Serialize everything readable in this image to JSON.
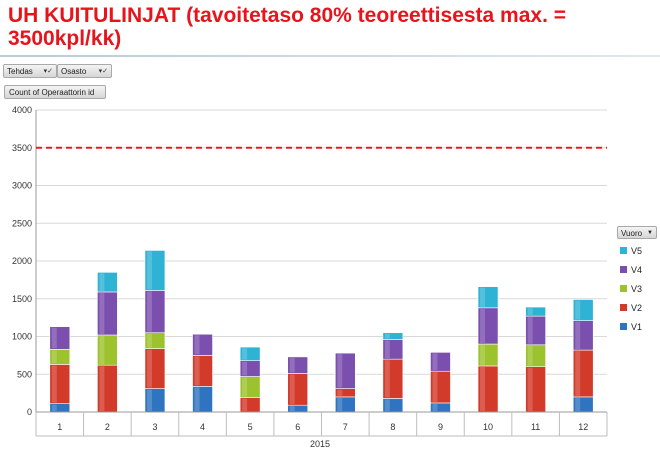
{
  "title": "UH KUITULINJAT (tavoitetaso 80% teoreettisesta max. = 3500kpl/kk)",
  "filters": {
    "tehdas_label": "Tehdas",
    "osasto_label": "Osasto",
    "value_field_label": "Count of Operaattorin id",
    "legend_field_label": "Vuoro"
  },
  "colors": {
    "V1": "#2e74c0",
    "V2": "#d23a2a",
    "V3": "#9cc22e",
    "V4": "#7a4fae",
    "V5": "#2fb3d4",
    "target_line": "#e02020"
  },
  "chart_data": {
    "type": "bar",
    "stacked": true,
    "categories": [
      "1",
      "2",
      "3",
      "4",
      "5",
      "6",
      "7",
      "8",
      "9",
      "10",
      "11",
      "12"
    ],
    "xlabel": "2015",
    "ylabel": "",
    "ylim": [
      0,
      4000
    ],
    "yticks": [
      0,
      500,
      1000,
      1500,
      2000,
      2500,
      3000,
      3500,
      4000
    ],
    "grid": true,
    "legend_position": "right",
    "target": {
      "value": 3500,
      "style": "dashed"
    },
    "series": [
      {
        "name": "V1",
        "values": [
          110,
          0,
          310,
          340,
          0,
          90,
          200,
          180,
          120,
          0,
          0,
          200
        ]
      },
      {
        "name": "V2",
        "values": [
          520,
          620,
          530,
          410,
          190,
          420,
          110,
          520,
          420,
          610,
          600,
          620
        ]
      },
      {
        "name": "V3",
        "values": [
          200,
          400,
          210,
          0,
          280,
          0,
          0,
          0,
          0,
          290,
          290,
          0
        ]
      },
      {
        "name": "V4",
        "values": [
          300,
          570,
          560,
          280,
          210,
          220,
          470,
          260,
          250,
          480,
          380,
          390
        ]
      },
      {
        "name": "V5",
        "values": [
          0,
          260,
          530,
          0,
          180,
          0,
          0,
          90,
          0,
          280,
          120,
          280
        ]
      }
    ]
  }
}
